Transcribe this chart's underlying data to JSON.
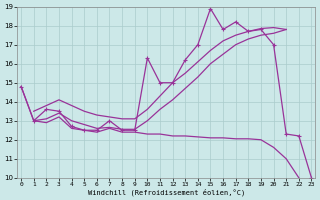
{
  "xlabel": "Windchill (Refroidissement éolien,°C)",
  "xlim": [
    0,
    23
  ],
  "ylim": [
    10,
    19
  ],
  "yticks": [
    10,
    11,
    12,
    13,
    14,
    15,
    16,
    17,
    18,
    19
  ],
  "xticks": [
    0,
    1,
    2,
    3,
    4,
    5,
    6,
    7,
    8,
    9,
    10,
    11,
    12,
    13,
    14,
    15,
    16,
    17,
    18,
    19,
    20,
    21,
    22,
    23
  ],
  "bg_color": "#cce8e8",
  "line_color": "#993399",
  "grid_color": "#aacccc",
  "zigzag_x": [
    0,
    1,
    2,
    3,
    4,
    5,
    6,
    7,
    8,
    9,
    10,
    11,
    12,
    13,
    14,
    15,
    16,
    17,
    18,
    19,
    20,
    21,
    22,
    23
  ],
  "zigzag_y": [
    14.8,
    13.0,
    13.6,
    13.5,
    12.7,
    12.5,
    12.5,
    13.0,
    12.5,
    12.5,
    16.3,
    15.0,
    15.0,
    16.2,
    17.0,
    18.9,
    17.8,
    18.2,
    17.7,
    17.8,
    17.0,
    12.3,
    12.2,
    10.0
  ],
  "upper_line_x": [
    1,
    2,
    3,
    4,
    5,
    6,
    7,
    8,
    9,
    10,
    11,
    12,
    13,
    14,
    15,
    16,
    17,
    18,
    19,
    20,
    21
  ],
  "upper_line_y": [
    13.5,
    13.8,
    14.1,
    13.8,
    13.5,
    13.3,
    13.2,
    13.1,
    13.1,
    13.6,
    14.3,
    15.0,
    15.5,
    16.1,
    16.7,
    17.2,
    17.5,
    17.7,
    17.85,
    17.9,
    17.8
  ],
  "lower_line_x": [
    1,
    2,
    3,
    4,
    5,
    6,
    7,
    8,
    9,
    10,
    11,
    12,
    13,
    14,
    15,
    16,
    17,
    18,
    19,
    20,
    21
  ],
  "lower_line_y": [
    13.0,
    13.1,
    13.4,
    13.0,
    12.8,
    12.6,
    12.65,
    12.55,
    12.55,
    13.0,
    13.6,
    14.1,
    14.7,
    15.3,
    16.0,
    16.5,
    17.0,
    17.3,
    17.5,
    17.6,
    17.8
  ],
  "bottom_line_x": [
    0,
    1,
    2,
    3,
    4,
    5,
    6,
    7,
    8,
    9,
    10,
    11,
    12,
    13,
    14,
    15,
    16,
    17,
    18,
    19,
    20,
    21,
    22
  ],
  "bottom_line_y": [
    14.8,
    13.0,
    12.9,
    13.2,
    12.6,
    12.5,
    12.4,
    12.6,
    12.4,
    12.4,
    12.3,
    12.3,
    12.2,
    12.2,
    12.15,
    12.1,
    12.1,
    12.05,
    12.05,
    12.0,
    11.6,
    11.0,
    10.0
  ]
}
